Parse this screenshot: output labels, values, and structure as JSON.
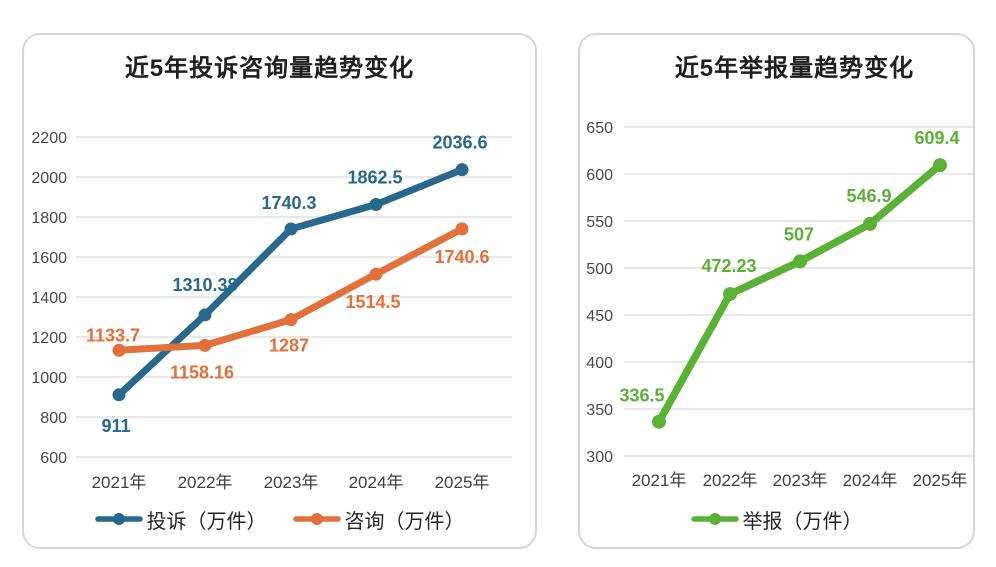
{
  "page": {
    "background": "#ffffff"
  },
  "palette": {
    "complaint_blue": "#28688C",
    "consult_orange": "#E2703A",
    "report_green": "#5BB036",
    "gridline": "#D9D9D9",
    "card_border": "#D6D6D6",
    "title_text": "#1F1F1F",
    "axis_text": "#4A4A4A"
  },
  "chart_data": [
    {
      "type": "line",
      "title": "近5年投诉咨询量趋势变化",
      "categories": [
        "2021年",
        "2022年",
        "2023年",
        "2024年",
        "2025年"
      ],
      "y_axis": {
        "min": 600,
        "max": 2200,
        "step": 200,
        "ticks": [
          2200,
          2000,
          1800,
          1600,
          1400,
          1200,
          1000,
          800,
          600
        ]
      },
      "grid": true,
      "legend_position": "bottom",
      "series": [
        {
          "name": "投诉（万件）",
          "color": "#28688C",
          "values": [
            911,
            1310.38,
            1740.3,
            1862.5,
            2036.6
          ],
          "labels": [
            "911",
            "1310.38",
            "1740.3",
            "1862.5",
            "2036.6"
          ],
          "label_offsets": [
            [
              -3,
              31
            ],
            [
              0,
              -30
            ],
            [
              -2,
              -26
            ],
            [
              -1,
              -27
            ],
            [
              -2,
              -27
            ]
          ]
        },
        {
          "name": "咨询（万件）",
          "color": "#E2703A",
          "values": [
            1133.7,
            1158.16,
            1287,
            1514.5,
            1740.6
          ],
          "labels": [
            "1133.7",
            "1158.16",
            "1287",
            "1514.5",
            "1740.6"
          ],
          "label_offsets": [
            [
              -6,
              -15
            ],
            [
              -3,
              27
            ],
            [
              -2,
              26
            ],
            [
              -3,
              28
            ],
            [
              0,
              28
            ]
          ]
        }
      ]
    },
    {
      "type": "line",
      "title": "近5年举报量趋势变化",
      "categories": [
        "2021年",
        "2022年",
        "2023年",
        "2024年",
        "2025年"
      ],
      "y_axis": {
        "min": 300,
        "max": 650,
        "step": 50,
        "ticks": [
          650,
          600,
          550,
          500,
          450,
          400,
          350,
          300
        ]
      },
      "grid": true,
      "legend_position": "bottom",
      "series": [
        {
          "name": "举报（万件）",
          "color": "#5BB036",
          "values": [
            336.5,
            472.23,
            507,
            546.9,
            609.4
          ],
          "labels": [
            "336.5",
            "472.23",
            "507",
            "546.9",
            "609.4"
          ],
          "label_offsets": [
            [
              -17,
              -26
            ],
            [
              -1,
              -28
            ],
            [
              -1,
              -27
            ],
            [
              -1,
              -28
            ],
            [
              -3,
              -27
            ]
          ]
        }
      ]
    }
  ]
}
